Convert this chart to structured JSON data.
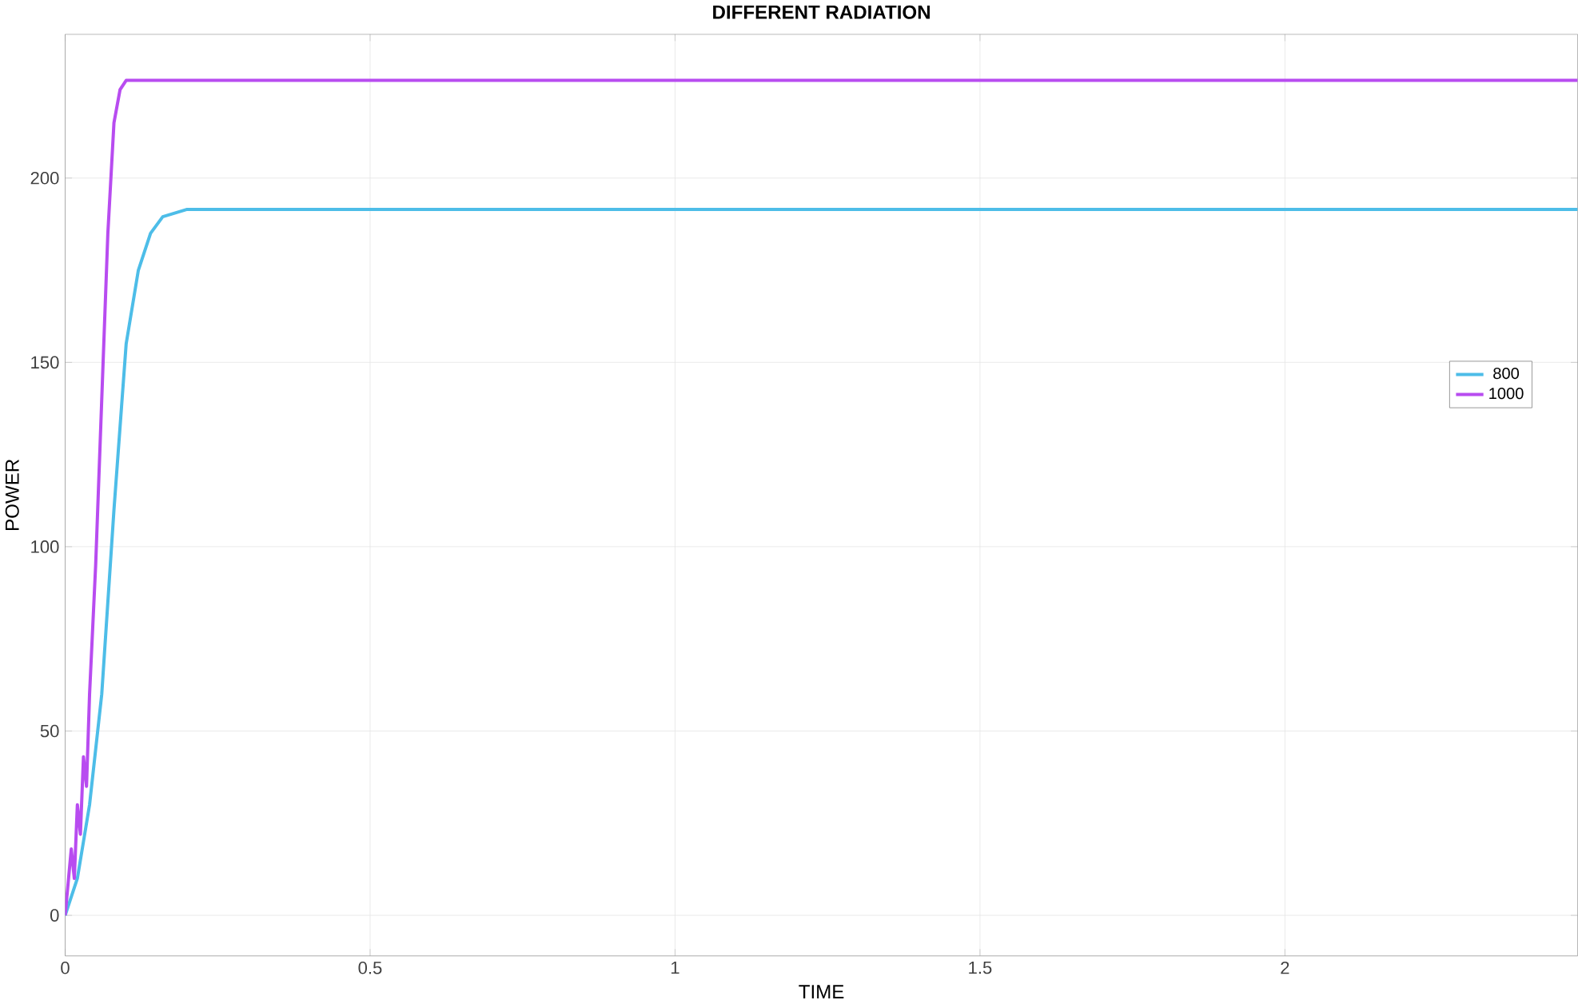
{
  "chart_data": {
    "type": "line",
    "title": "DIFFERENT RADIATION",
    "xlabel": "TIME",
    "ylabel": "POWER",
    "xlim": [
      0,
      2.48
    ],
    "ylim": [
      -11,
      239
    ],
    "xticks": [
      0,
      0.5,
      1,
      1.5,
      2
    ],
    "yticks": [
      0,
      50,
      100,
      150,
      200
    ],
    "grid": true,
    "legend": "right",
    "series": [
      {
        "name": "800",
        "color": "#4dbde8",
        "x": [
          0,
          0.02,
          0.04,
          0.06,
          0.08,
          0.1,
          0.12,
          0.14,
          0.16,
          0.2,
          2.48
        ],
        "values": [
          0,
          10,
          30,
          60,
          110,
          155,
          175,
          185,
          189.5,
          191.5,
          191.5
        ]
      },
      {
        "name": "1000",
        "color": "#b84cf0",
        "x": [
          0,
          0.01,
          0.015,
          0.02,
          0.025,
          0.03,
          0.035,
          0.04,
          0.05,
          0.06,
          0.07,
          0.08,
          0.09,
          0.1,
          2.48
        ],
        "values": [
          0,
          18,
          10,
          30,
          22,
          43,
          35,
          60,
          95,
          140,
          185,
          215,
          224,
          226.5,
          226.5
        ]
      }
    ]
  }
}
